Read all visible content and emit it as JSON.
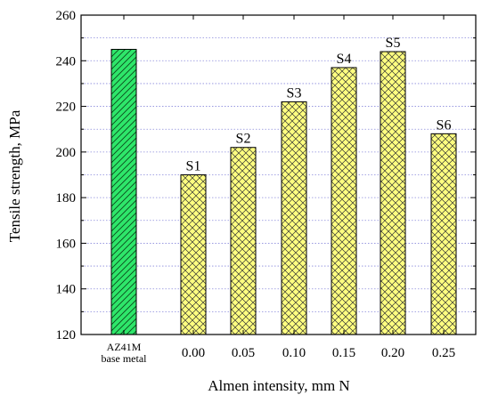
{
  "chart_data": {
    "type": "bar",
    "xlabel": "Almen intensity, mm N",
    "ylabel": "Tensile strength, MPa",
    "ylim": [
      120,
      260
    ],
    "yticks": [
      120,
      140,
      160,
      180,
      200,
      220,
      240,
      260
    ],
    "grid": "horizontal dotted",
    "categories": [
      {
        "label": "AZ41M",
        "sublabel": "base metal"
      },
      {
        "label": "0.00"
      },
      {
        "label": "0.05"
      },
      {
        "label": "0.10"
      },
      {
        "label": "0.15"
      },
      {
        "label": "0.20"
      },
      {
        "label": "0.25"
      }
    ],
    "bars": [
      {
        "value": 245,
        "data_label": "",
        "fill": "#2ee66a",
        "pattern": "diagonal"
      },
      {
        "value": 190,
        "data_label": "S1",
        "fill": "#ffff80",
        "pattern": "crosshatch"
      },
      {
        "value": 202,
        "data_label": "S2",
        "fill": "#ffff80",
        "pattern": "crosshatch"
      },
      {
        "value": 222,
        "data_label": "S3",
        "fill": "#ffff80",
        "pattern": "crosshatch"
      },
      {
        "value": 237,
        "data_label": "S4",
        "fill": "#ffff80",
        "pattern": "crosshatch"
      },
      {
        "value": 244,
        "data_label": "S5",
        "fill": "#ffff80",
        "pattern": "crosshatch"
      },
      {
        "value": 208,
        "data_label": "S6",
        "fill": "#ffff80",
        "pattern": "crosshatch"
      }
    ],
    "colors": {
      "grid": "#8a8adb",
      "axis": "#000000",
      "base_bar": "#2ee66a",
      "treated_bar": "#ffff80"
    }
  }
}
